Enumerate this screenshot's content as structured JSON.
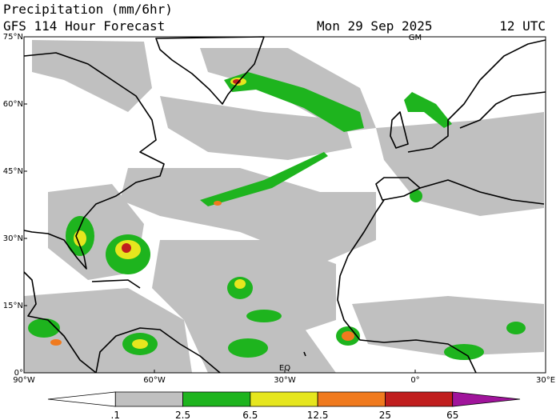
{
  "header": {
    "title": "Precipitation (mm/6hr)",
    "subtitle": "GFS 114 Hour Forecast",
    "date": "Mon 29 Sep 2025",
    "time": "12 UTC"
  },
  "map": {
    "lat_labels": [
      "75°N",
      "60°N",
      "45°N",
      "30°N",
      "15°N",
      "0°"
    ],
    "lon_labels": [
      "90°W",
      "60°W",
      "30°W",
      "0°",
      "30°E"
    ],
    "markers": [
      "GM",
      "EQ"
    ]
  },
  "colorbar": {
    "labels": [
      ".1",
      "2.5",
      "6.5",
      "12.5",
      "25",
      "65"
    ],
    "colors": [
      "#ffffff",
      "#c0c0c0",
      "#1eb41e",
      "#e6e61e",
      "#f07a1e",
      "#c01e1e",
      "#a0149b"
    ]
  }
}
